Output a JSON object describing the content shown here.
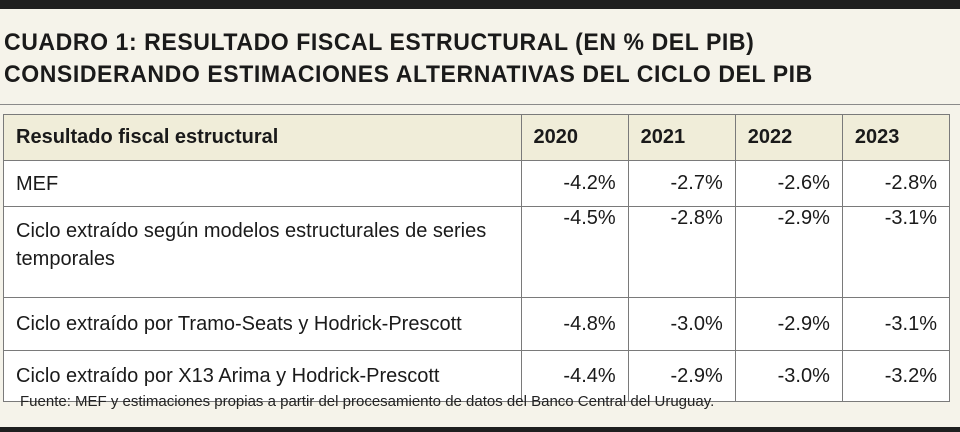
{
  "title": {
    "line1": "CUADRO 1: RESULTADO FISCAL ESTRUCTURAL (EN % DEL PIB)",
    "line2": "CONSIDERANDO ESTIMACIONES ALTERNATIVAS DEL CICLO DEL PIB"
  },
  "table": {
    "header": {
      "label": "Resultado fiscal estructural",
      "years": [
        "2020",
        "2021",
        "2022",
        "2023"
      ]
    },
    "rows": [
      {
        "label": "MEF",
        "values": [
          "-4.2%",
          "-2.7%",
          "-2.6%",
          "-2.8%"
        ]
      },
      {
        "label": "Ciclo extraído según modelos estructurales de series temporales",
        "values": [
          "-4.5%",
          "-2.8%",
          "-2.9%",
          "-3.1%"
        ]
      },
      {
        "label": "Ciclo extraído por Tramo-Seats y Hodrick-Prescott",
        "values": [
          "-4.8%",
          "-3.0%",
          "-2.9%",
          "-3.1%"
        ]
      },
      {
        "label": "Ciclo extraído por X13 Arima y Hodrick-Prescott",
        "values": [
          "-4.4%",
          "-2.9%",
          "-3.0%",
          "-3.2%"
        ]
      }
    ]
  },
  "source": "Fuente: MEF y estimaciones propias a partir del procesamiento de datos del Banco Central del Uruguay.",
  "colors": {
    "background": "#f5f3ea",
    "header_fill": "#f0edd9",
    "rule": "#1f1f1f"
  }
}
